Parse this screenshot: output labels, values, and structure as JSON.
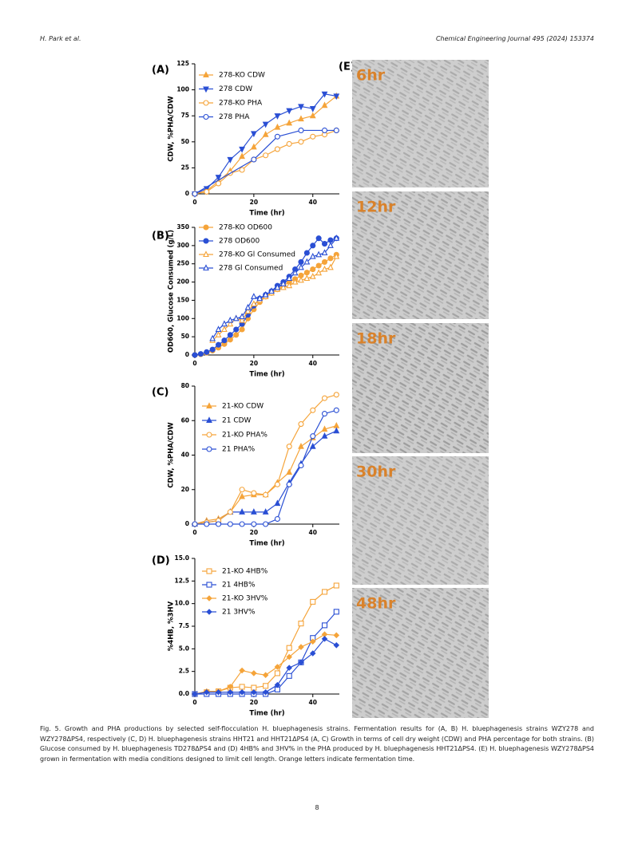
{
  "header": {
    "left": "H. Park et al.",
    "right": "Chemical Engineering Journal 495 (2024) 153374"
  },
  "chart_data": [
    {
      "type": "line",
      "panel_label": "(A)",
      "x_label": "Time (hr)",
      "y_label": "CDW, %PHA/CDW",
      "xlim": [
        0,
        49
      ],
      "xticks": [
        0,
        20,
        40
      ],
      "ylim": [
        0,
        125
      ],
      "yticks": [
        0,
        25,
        50,
        75,
        100,
        125
      ],
      "series": [
        {
          "name": "278-KO CDW",
          "color": "#f5a43a",
          "marker": "triangle-up",
          "filled": true,
          "x": [
            0,
            4,
            8,
            12,
            16,
            20,
            24,
            28,
            32,
            36,
            40,
            44,
            48
          ],
          "values": [
            0,
            3,
            12,
            22,
            36,
            45,
            57,
            64,
            68,
            72,
            75,
            85,
            94
          ]
        },
        {
          "name": "278 CDW",
          "color": "#2a4fd4",
          "marker": "triangle-down",
          "filled": true,
          "x": [
            0,
            4,
            8,
            12,
            16,
            20,
            24,
            28,
            32,
            36,
            40,
            44,
            48
          ],
          "values": [
            0,
            5,
            16,
            33,
            43,
            58,
            67,
            75,
            80,
            84,
            82,
            96,
            94
          ]
        },
        {
          "name": "278-KO PHA",
          "color": "#f5a43a",
          "marker": "circle",
          "filled": false,
          "x": [
            0,
            4,
            8,
            12,
            16,
            20,
            24,
            28,
            32,
            36,
            40,
            44,
            48
          ],
          "values": [
            0,
            2,
            10,
            20,
            23,
            33,
            37,
            43,
            48,
            50,
            55,
            57,
            61
          ]
        },
        {
          "name": "278 PHA",
          "color": "#2a4fd4",
          "marker": "circle",
          "filled": false,
          "x": [
            0,
            20,
            28,
            36,
            44,
            48
          ],
          "values": [
            0,
            33,
            55,
            61,
            61,
            61
          ]
        }
      ]
    },
    {
      "type": "line",
      "panel_label": "(B)",
      "x_label": "Time (hr)",
      "y_label": "OD600, Glucose Consumed (g/L)",
      "xlim": [
        0,
        49
      ],
      "xticks": [
        0,
        20,
        40
      ],
      "ylim": [
        0,
        350
      ],
      "yticks": [
        0,
        50,
        100,
        150,
        200,
        250,
        300,
        350
      ],
      "series": [
        {
          "name": "278-KO OD600",
          "color": "#f5a43a",
          "marker": "circle",
          "filled": true,
          "x": [
            0,
            2,
            4,
            6,
            8,
            10,
            12,
            14,
            16,
            18,
            20,
            22,
            24,
            26,
            28,
            30,
            32,
            34,
            36,
            38,
            40,
            42,
            44,
            46,
            48
          ],
          "values": [
            0,
            2,
            6,
            12,
            20,
            30,
            42,
            55,
            70,
            100,
            125,
            145,
            160,
            170,
            180,
            190,
            200,
            208,
            218,
            226,
            235,
            245,
            255,
            265,
            275
          ]
        },
        {
          "name": "278 OD600",
          "color": "#2a4fd4",
          "marker": "circle",
          "filled": true,
          "x": [
            0,
            2,
            4,
            6,
            8,
            10,
            12,
            14,
            16,
            18,
            20,
            22,
            24,
            26,
            28,
            30,
            32,
            34,
            36,
            38,
            40,
            42,
            44,
            46,
            48
          ],
          "values": [
            0,
            3,
            8,
            15,
            28,
            40,
            55,
            70,
            85,
            110,
            135,
            155,
            165,
            175,
            190,
            200,
            215,
            235,
            255,
            280,
            300,
            320,
            305,
            315,
            320
          ]
        },
        {
          "name": "278-KO Gl Consumed",
          "color": "#f5a43a",
          "marker": "triangle-up",
          "filled": false,
          "x": [
            6,
            8,
            10,
            12,
            14,
            16,
            18,
            20,
            22,
            24,
            26,
            28,
            30,
            32,
            34,
            36,
            38,
            40,
            42,
            44,
            46,
            48
          ],
          "values": [
            40,
            55,
            70,
            85,
            100,
            95,
            120,
            140,
            150,
            160,
            170,
            180,
            185,
            190,
            200,
            205,
            210,
            215,
            225,
            235,
            240,
            270
          ]
        },
        {
          "name": "278 Gl Consumed",
          "color": "#2a4fd4",
          "marker": "triangle-up",
          "filled": false,
          "x": [
            6,
            8,
            10,
            12,
            14,
            16,
            18,
            20,
            22,
            24,
            26,
            28,
            30,
            32,
            34,
            36,
            38,
            40,
            42,
            44,
            46,
            48
          ],
          "values": [
            45,
            70,
            85,
            95,
            100,
            105,
            130,
            160,
            155,
            165,
            175,
            185,
            195,
            210,
            225,
            240,
            255,
            270,
            275,
            280,
            300,
            320
          ]
        }
      ]
    },
    {
      "type": "line",
      "panel_label": "(C)",
      "x_label": "Time (hr)",
      "y_label": "CDW, %PHA/CDW",
      "xlim": [
        0,
        49
      ],
      "xticks": [
        0,
        20,
        40
      ],
      "ylim": [
        0,
        80
      ],
      "yticks": [
        0,
        20,
        40,
        60,
        80
      ],
      "series": [
        {
          "name": "21-KO CDW",
          "color": "#f5a43a",
          "marker": "triangle-up",
          "filled": true,
          "x": [
            0,
            4,
            8,
            12,
            16,
            20,
            24,
            28,
            32,
            36,
            40,
            44,
            48
          ],
          "values": [
            0,
            2,
            3,
            7,
            16,
            17,
            17,
            24,
            30,
            45,
            50,
            55,
            57
          ]
        },
        {
          "name": "21 CDW",
          "color": "#2a4fd4",
          "marker": "triangle-up",
          "filled": true,
          "x": [
            0,
            4,
            8,
            12,
            16,
            20,
            24,
            28,
            32,
            36,
            40,
            44,
            48
          ],
          "values": [
            0,
            1,
            2,
            7,
            7,
            7,
            7,
            12,
            24,
            35,
            45,
            51,
            54
          ]
        },
        {
          "name": "21-KO PHA%",
          "color": "#f5a43a",
          "marker": "circle",
          "filled": false,
          "x": [
            0,
            4,
            8,
            12,
            16,
            20,
            24,
            28,
            32,
            36,
            40,
            44,
            48
          ],
          "values": [
            0,
            1,
            2,
            7,
            20,
            18,
            17,
            23,
            45,
            58,
            66,
            73,
            75
          ]
        },
        {
          "name": "21 PHA%",
          "color": "#2a4fd4",
          "marker": "circle",
          "filled": false,
          "x": [
            0,
            4,
            8,
            12,
            16,
            20,
            24,
            28,
            32,
            36,
            40,
            44,
            48
          ],
          "values": [
            0,
            0,
            0,
            0,
            0,
            0,
            0,
            3,
            23,
            34,
            51,
            64,
            66
          ]
        }
      ]
    },
    {
      "type": "line",
      "panel_label": "(D)",
      "x_label": "Time (hr)",
      "y_label": "%4HB, %3HV",
      "xlim": [
        0,
        49
      ],
      "xticks": [
        0,
        20,
        40
      ],
      "ylim": [
        0,
        15
      ],
      "yticks": [
        {
          "value": 0,
          "label": "0.0"
        },
        {
          "value": 2.5,
          "label": "2.5"
        },
        {
          "value": 5,
          "label": "5.0"
        },
        {
          "value": 7.5,
          "label": "7.5"
        },
        {
          "value": 10,
          "label": "10.0"
        },
        {
          "value": 12.5,
          "label": "12.5"
        },
        {
          "value": 15,
          "label": "15.0"
        }
      ],
      "series": [
        {
          "name": "21-KO 4HB%",
          "color": "#f5a43a",
          "marker": "square",
          "filled": false,
          "x": [
            0,
            4,
            8,
            12,
            16,
            20,
            24,
            28,
            32,
            36,
            40,
            44,
            48
          ],
          "values": [
            0,
            0.2,
            0.3,
            0.7,
            0.8,
            0.7,
            0.9,
            2.3,
            5.1,
            7.8,
            10.2,
            11.3,
            12
          ]
        },
        {
          "name": "21 4HB%",
          "color": "#2a4fd4",
          "marker": "square",
          "filled": false,
          "x": [
            0,
            4,
            8,
            12,
            16,
            20,
            24,
            28,
            32,
            36,
            40,
            44,
            48
          ],
          "values": [
            0,
            0,
            0,
            0,
            0,
            0,
            0,
            0.5,
            2,
            3.5,
            6.2,
            7.6,
            9.1
          ]
        },
        {
          "name": "21-KO 3HV%",
          "color": "#f5a43a",
          "marker": "diamond",
          "filled": true,
          "x": [
            0,
            4,
            8,
            12,
            16,
            20,
            24,
            28,
            32,
            36,
            40,
            44,
            48
          ],
          "values": [
            0,
            0.3,
            0.3,
            0.8,
            2.6,
            2.3,
            2.1,
            3,
            4.1,
            5.2,
            5.8,
            6.6,
            6.5
          ]
        },
        {
          "name": "21 3HV%",
          "color": "#2a4fd4",
          "marker": "diamond",
          "filled": true,
          "x": [
            0,
            4,
            8,
            12,
            16,
            20,
            24,
            28,
            32,
            36,
            40,
            44,
            48
          ],
          "values": [
            0,
            0.2,
            0.2,
            0.2,
            0.2,
            0.2,
            0.2,
            1,
            2.9,
            3.5,
            4.5,
            6.1,
            5.4
          ]
        }
      ]
    }
  ],
  "panel_e": {
    "label": "(E)",
    "times": [
      "6hr",
      "12hr",
      "18hr",
      "30hr",
      "48hr"
    ]
  },
  "caption": "Fig. 5. Growth and PHA productions by selected self-flocculation H. bluephagenesis strains. Fermentation results for (A, B) H. bluephagenesis strains WZY278 and WZY278ΔPS4, respectively (C, D) H. bluephagenesis strains HHT21 and HHT21ΔPS4 (A, C) Growth in terms of cell dry weight (CDW) and PHA percentage for both strains. (B) Glucose consumed by H. bluephagenesis TD278ΔPS4 and (D) 4HB% and 3HV% in the PHA produced by H. bluephagenesis HHT21ΔPS4. (E) H. bluephagenesis WZY278ΔPS4 grown in fermentation with media conditions designed to limit cell length. Orange letters indicate fermentation time.",
  "page_number": "8"
}
